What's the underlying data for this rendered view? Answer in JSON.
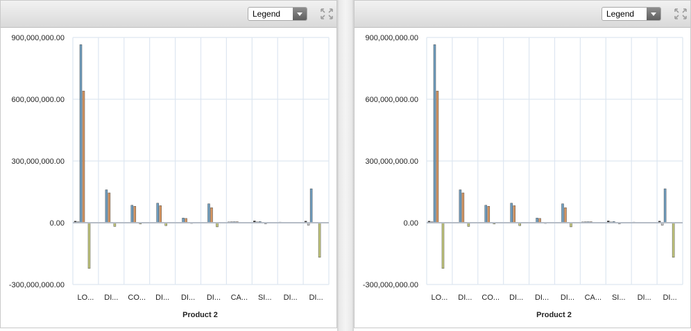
{
  "panels": [
    {
      "legend_button_label": "Legend",
      "expand_icon": "expand-arrows-icon",
      "chart_data": {
        "type": "bar",
        "xlabel": "Product 2",
        "ylabel": "",
        "ylim": [
          -300000000,
          900000000
        ],
        "y_ticks": [
          -300000000,
          0,
          300000000,
          600000000,
          900000000
        ],
        "y_tick_labels": [
          "-300,000,000.00",
          "0.00",
          "300,000,000.00",
          "600,000,000.00",
          "900,000,000.00"
        ],
        "grid": true,
        "legend": "hidden",
        "categories": [
          "LO...",
          "DI...",
          "CO...",
          "DI...",
          "DI...",
          "DI...",
          "CA...",
          "SI...",
          "DI...",
          "DI..."
        ],
        "series": [
          {
            "color": "#3d3d3d",
            "values": [
              8000000,
              1000000,
              1000000,
              1000000,
              0,
              0,
              4000000,
              9000000,
              3000000,
              8000000
            ]
          },
          {
            "color": "#c9c9c9",
            "values": [
              5000000,
              1000000,
              1000000,
              1000000,
              0,
              0,
              5000000,
              4000000,
              2000000,
              -12000000
            ]
          },
          {
            "color": "#6f9fc1",
            "values": [
              865000000,
              160000000,
              85000000,
              95000000,
              23000000,
              92000000,
              5000000,
              6000000,
              2000000,
              165000000
            ]
          },
          {
            "color": "#d7955f",
            "values": [
              640000000,
              145000000,
              80000000,
              83000000,
              21000000,
              73000000,
              5000000,
              2000000,
              1000000,
              0
            ]
          },
          {
            "color": "#9a9a9a",
            "values": [
              2000000,
              0,
              1000000,
              1000000,
              1000000,
              0,
              0,
              -5000000,
              0,
              0
            ]
          },
          {
            "color": "#c3c77b",
            "values": [
              -222000000,
              -18000000,
              -6000000,
              -14000000,
              -2000000,
              -20000000,
              0,
              0,
              0,
              -168000000
            ]
          }
        ]
      }
    },
    {
      "legend_button_label": "Legend",
      "expand_icon": "expand-arrows-icon",
      "chart_data": {
        "type": "bar",
        "xlabel": "Product 2",
        "ylabel": "",
        "ylim": [
          -300000000,
          900000000
        ],
        "y_ticks": [
          -300000000,
          0,
          300000000,
          600000000,
          900000000
        ],
        "y_tick_labels": [
          "-300,000,000.00",
          "0.00",
          "300,000,000.00",
          "600,000,000.00",
          "900,000,000.00"
        ],
        "grid": true,
        "legend": "hidden",
        "categories": [
          "LO...",
          "DI...",
          "CO...",
          "DI...",
          "DI...",
          "DI...",
          "CA...",
          "SI...",
          "DI...",
          "DI..."
        ],
        "series": [
          {
            "color": "#3d3d3d",
            "values": [
              8000000,
              1000000,
              1000000,
              1000000,
              0,
              0,
              4000000,
              9000000,
              3000000,
              8000000
            ]
          },
          {
            "color": "#c9c9c9",
            "values": [
              5000000,
              1000000,
              1000000,
              1000000,
              0,
              0,
              5000000,
              4000000,
              2000000,
              -12000000
            ]
          },
          {
            "color": "#6f9fc1",
            "values": [
              865000000,
              160000000,
              85000000,
              95000000,
              23000000,
              92000000,
              5000000,
              6000000,
              2000000,
              165000000
            ]
          },
          {
            "color": "#d7955f",
            "values": [
              640000000,
              145000000,
              80000000,
              83000000,
              21000000,
              73000000,
              5000000,
              2000000,
              1000000,
              0
            ]
          },
          {
            "color": "#9a9a9a",
            "values": [
              2000000,
              0,
              1000000,
              1000000,
              1000000,
              0,
              0,
              -5000000,
              0,
              0
            ]
          },
          {
            "color": "#c3c77b",
            "values": [
              -222000000,
              -18000000,
              -6000000,
              -14000000,
              -2000000,
              -20000000,
              0,
              0,
              0,
              -168000000
            ]
          }
        ]
      }
    }
  ]
}
